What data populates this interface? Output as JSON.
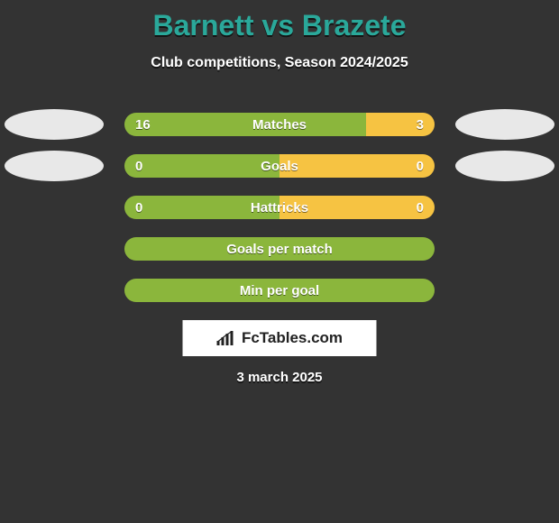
{
  "background_color": "#333333",
  "title": {
    "text": "Barnett vs Brazete",
    "color": "#2aa89a",
    "fontsize": 32
  },
  "subtitle": {
    "text": "Club competitions, Season 2024/2025",
    "color": "#ffffff",
    "fontsize": 16
  },
  "brand": {
    "text": "FcTables.com",
    "box_bg": "#ffffff",
    "text_color": "#222222"
  },
  "date": "3 march 2025",
  "colors": {
    "player1_bar": "#8bb63c",
    "player2_bar": "#f6c342",
    "bar_text": "#ffffff",
    "ellipse": "#e8e8e8"
  },
  "rows": [
    {
      "label": "Matches",
      "left_val": "16",
      "right_val": "3",
      "left_pct": 78,
      "right_pct": 22,
      "left_ellipse": true,
      "right_ellipse": true
    },
    {
      "label": "Goals",
      "left_val": "0",
      "right_val": "0",
      "left_pct": 50,
      "right_pct": 50,
      "left_ellipse": true,
      "right_ellipse": true
    },
    {
      "label": "Hattricks",
      "left_val": "0",
      "right_val": "0",
      "left_pct": 50,
      "right_pct": 50,
      "left_ellipse": false,
      "right_ellipse": false
    },
    {
      "label": "Goals per match",
      "left_val": "",
      "right_val": "",
      "left_pct": 100,
      "right_pct": 0,
      "left_ellipse": false,
      "right_ellipse": false
    },
    {
      "label": "Min per goal",
      "left_val": "",
      "right_val": "",
      "left_pct": 100,
      "right_pct": 0,
      "left_ellipse": false,
      "right_ellipse": false
    }
  ]
}
